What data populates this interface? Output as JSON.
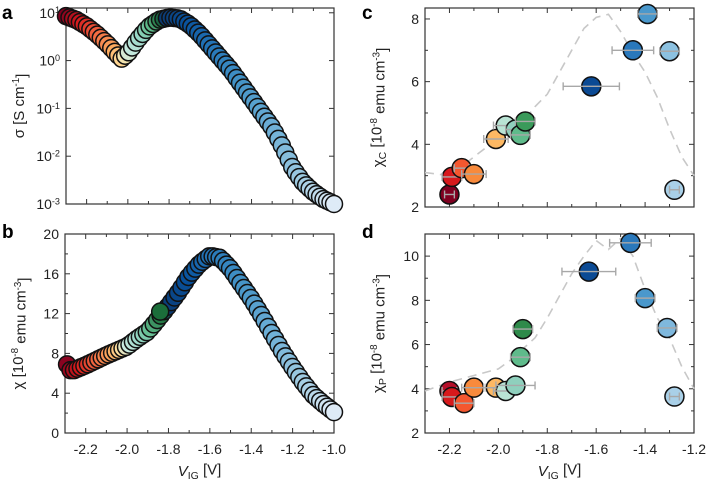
{
  "colormap": [
    {
      "x": -2.3,
      "c": "#7f0020"
    },
    {
      "x": -2.22,
      "c": "#d7191c"
    },
    {
      "x": -2.13,
      "c": "#f46d43"
    },
    {
      "x": -2.06,
      "c": "#fdae61"
    },
    {
      "x": -2.02,
      "c": "#fee0a0"
    },
    {
      "x": -1.99,
      "c": "#ccebe0"
    },
    {
      "x": -1.93,
      "c": "#99d8c9"
    },
    {
      "x": -1.88,
      "c": "#5fbb8b"
    },
    {
      "x": -1.83,
      "c": "#1b6e3a"
    },
    {
      "x": -1.81,
      "c": "#0b3a73"
    },
    {
      "x": -1.7,
      "c": "#08519c"
    },
    {
      "x": -1.6,
      "c": "#2171b5"
    },
    {
      "x": -1.45,
      "c": "#4292c6"
    },
    {
      "x": -1.3,
      "c": "#6baed6"
    },
    {
      "x": -1.15,
      "c": "#9ecae1"
    },
    {
      "x": -1.0,
      "c": "#deebf7"
    }
  ],
  "chart_data": [
    {
      "panel": "a",
      "type": "scatter",
      "scale_y": "log",
      "ylabel": "σ [S cm^{-1}]",
      "xlabel": "",
      "xlim": [
        -2.3,
        -1.0
      ],
      "ylim_log10": [
        -3,
        1.1
      ],
      "x_ticks": [
        -2.2,
        -2.0,
        -1.8,
        -1.6,
        -1.4,
        -1.2,
        -1.0
      ],
      "y_ticks_log10": [
        -3,
        -2,
        -1,
        0,
        1
      ],
      "y_tick_labels": [
        "10^{-3}",
        "10^{-2}",
        "10^{-1}",
        "10^{0}",
        "10^{1}"
      ],
      "x": [
        -2.3,
        -2.25,
        -2.2,
        -2.15,
        -2.1,
        -2.05,
        -2.03,
        -2.0,
        -1.95,
        -1.9,
        -1.85,
        -1.8,
        -1.75,
        -1.7,
        -1.65,
        -1.6,
        -1.55,
        -1.5,
        -1.45,
        -1.4,
        -1.35,
        -1.3,
        -1.25,
        -1.2,
        -1.15,
        -1.1,
        -1.05,
        -1.0
      ],
      "log10_sigma": [
        0.93,
        0.85,
        0.72,
        0.55,
        0.35,
        0.12,
        0.04,
        0.15,
        0.45,
        0.7,
        0.85,
        0.9,
        0.88,
        0.75,
        0.55,
        0.3,
        0.05,
        -0.2,
        -0.5,
        -0.8,
        -1.1,
        -1.4,
        -1.8,
        -2.25,
        -2.55,
        -2.75,
        -2.9,
        -3.0
      ]
    },
    {
      "panel": "b",
      "type": "scatter",
      "ylabel": "χ [10^{-8} emu cm^{-3}]",
      "xlabel": "V_{IG} [V]",
      "xlim": [
        -2.3,
        -1.0
      ],
      "ylim": [
        0,
        20
      ],
      "x_ticks": [
        -2.2,
        -2.0,
        -1.8,
        -1.6,
        -1.4,
        -1.2,
        -1.0
      ],
      "x_tick_labels": [
        "-2.2",
        "-2.0",
        "-1.8",
        "-1.6",
        "-1.4",
        "-1.2",
        "-1.0"
      ],
      "y_ticks": [
        0,
        4,
        8,
        12,
        16,
        20
      ],
      "y_tick_labels": [
        "0",
        "4",
        "8",
        "12",
        "16",
        "20"
      ],
      "x": [
        -2.29,
        -2.27,
        -2.2,
        -2.1,
        -2.0,
        -1.95,
        -1.9,
        -1.86,
        -1.8,
        -1.75,
        -1.7,
        -1.65,
        -1.6,
        -1.55,
        -1.5,
        -1.45,
        -1.4,
        -1.35,
        -1.3,
        -1.25,
        -1.2,
        -1.15,
        -1.1,
        -1.05,
        -1.0
      ],
      "y": [
        6.9,
        6.2,
        6.8,
        7.8,
        8.7,
        9.5,
        10.2,
        11.2,
        12.8,
        14.2,
        15.8,
        17.0,
        17.8,
        17.6,
        16.5,
        15.0,
        13.5,
        11.8,
        10.0,
        8.2,
        6.6,
        5.1,
        3.8,
        2.9,
        2.1
      ],
      "extra_points": [
        {
          "x": -1.84,
          "y": 12.2
        }
      ]
    },
    {
      "panel": "c",
      "type": "scatter",
      "ylabel": "χ_{C} [10^{-8} emu cm^{-3}]",
      "xlabel": "",
      "xlim": [
        -2.3,
        -1.2
      ],
      "ylim": [
        2,
        8.35
      ],
      "x_ticks": [
        -2.2,
        -2.0,
        -1.8,
        -1.6,
        -1.4,
        -1.2
      ],
      "y_ticks": [
        2,
        4,
        6,
        8
      ],
      "y_tick_labels": [
        "2",
        "4",
        "6",
        "8"
      ],
      "points": [
        {
          "x": -2.2,
          "y": 2.4,
          "xerr": 0.02,
          "color": "#7f0020"
        },
        {
          "x": -2.19,
          "y": 2.96,
          "xerr": 0.04,
          "color": "#d7191c"
        },
        {
          "x": -2.15,
          "y": 3.24,
          "xerr": 0.03,
          "color": "#f4572f"
        },
        {
          "x": -2.1,
          "y": 3.05,
          "xerr": 0.05,
          "color": "#f88a3c"
        },
        {
          "x": -2.01,
          "y": 4.17,
          "xerr": 0.05,
          "color": "#fdb863"
        },
        {
          "x": -1.97,
          "y": 4.6,
          "xerr": 0.05,
          "color": "#b9e3d4"
        },
        {
          "x": -1.93,
          "y": 4.47,
          "xerr": 0.04,
          "color": "#8fd0bd"
        },
        {
          "x": -1.91,
          "y": 4.3,
          "xerr": 0.04,
          "color": "#5fbb8b"
        },
        {
          "x": -1.89,
          "y": 4.73,
          "xerr": 0.04,
          "color": "#3a9a5a"
        },
        {
          "x": -1.62,
          "y": 5.85,
          "xerr": 0.115,
          "color": "#0b4a94"
        },
        {
          "x": -1.45,
          "y": 7.0,
          "xerr": 0.085,
          "color": "#2a78bb"
        },
        {
          "x": -1.39,
          "y": 8.16,
          "xerr": 0.04,
          "color": "#4a98cc"
        },
        {
          "x": -1.3,
          "y": 6.97,
          "xerr": 0.04,
          "color": "#8cc1e0"
        },
        {
          "x": -1.28,
          "y": 2.55,
          "xerr": 0.02,
          "color": "#a9d0e8"
        }
      ],
      "reference_curve": {
        "x": [
          -2.3,
          -2.2,
          -2.1,
          -2.0,
          -1.9,
          -1.85,
          -1.8,
          -1.75,
          -1.7,
          -1.65,
          -1.6,
          -1.55,
          -1.5,
          -1.45,
          -1.4,
          -1.35,
          -1.3,
          -1.25,
          -1.2
        ],
        "y": [
          3.1,
          3.0,
          3.6,
          4.2,
          4.7,
          5.2,
          5.6,
          6.3,
          7.0,
          7.7,
          8.05,
          8.15,
          7.6,
          6.9,
          6.3,
          5.5,
          4.5,
          3.6,
          3.0
        ]
      }
    },
    {
      "panel": "d",
      "type": "scatter",
      "ylabel": "χ_{P} [10^{-8} emu cm^{-3}]",
      "xlabel": "V_{IG} [V]",
      "xlim": [
        -2.3,
        -1.2
      ],
      "ylim": [
        2,
        11
      ],
      "x_ticks": [
        -2.2,
        -2.0,
        -1.8,
        -1.6,
        -1.4,
        -1.2
      ],
      "x_tick_labels": [
        "-2.2",
        "-2.0",
        "-1.8",
        "-1.6",
        "-1.4",
        "-1.2"
      ],
      "y_ticks": [
        2,
        4,
        6,
        8,
        10
      ],
      "y_tick_labels": [
        "2",
        "4",
        "6",
        "8",
        "10"
      ],
      "points": [
        {
          "x": -2.2,
          "y": 3.9,
          "xerr": 0.03,
          "color": "#b5102a"
        },
        {
          "x": -2.19,
          "y": 3.63,
          "xerr": 0.04,
          "color": "#d7191c"
        },
        {
          "x": -2.14,
          "y": 3.35,
          "xerr": 0.04,
          "color": "#f4572f"
        },
        {
          "x": -2.1,
          "y": 4.05,
          "xerr": 0.05,
          "color": "#f88a3c"
        },
        {
          "x": -2.01,
          "y": 4.05,
          "xerr": 0.05,
          "color": "#fdb863"
        },
        {
          "x": -1.97,
          "y": 3.9,
          "xerr": 0.05,
          "color": "#b9e3d4"
        },
        {
          "x": -1.93,
          "y": 4.15,
          "xerr": 0.08,
          "color": "#8fd0bd"
        },
        {
          "x": -1.91,
          "y": 5.43,
          "xerr": 0.04,
          "color": "#5fbb8b"
        },
        {
          "x": -1.9,
          "y": 6.7,
          "xerr": 0.04,
          "color": "#2e8a4a"
        },
        {
          "x": -1.63,
          "y": 9.3,
          "xerr": 0.11,
          "color": "#0b4a94"
        },
        {
          "x": -1.46,
          "y": 10.6,
          "xerr": 0.085,
          "color": "#2a78bb"
        },
        {
          "x": -1.4,
          "y": 8.1,
          "xerr": 0.04,
          "color": "#4a98cc"
        },
        {
          "x": -1.31,
          "y": 6.75,
          "xerr": 0.04,
          "color": "#7fb8dd"
        },
        {
          "x": -1.28,
          "y": 3.65,
          "xerr": 0.02,
          "color": "#a9d0e8"
        }
      ],
      "reference_curve": {
        "x": [
          -2.3,
          -2.2,
          -2.1,
          -2.0,
          -1.95,
          -1.9,
          -1.85,
          -1.8,
          -1.75,
          -1.7,
          -1.65,
          -1.6,
          -1.55,
          -1.5,
          -1.45,
          -1.4,
          -1.35,
          -1.3,
          -1.25,
          -1.2
        ],
        "y": [
          3.9,
          4.3,
          4.6,
          4.9,
          5.3,
          5.8,
          6.3,
          7.2,
          8.2,
          9.2,
          10.0,
          10.7,
          10.3,
          10.8,
          10.0,
          8.5,
          7.2,
          6.3,
          5.0,
          4.0
        ]
      }
    }
  ],
  "panel_letters": [
    "a",
    "b",
    "c",
    "d"
  ]
}
